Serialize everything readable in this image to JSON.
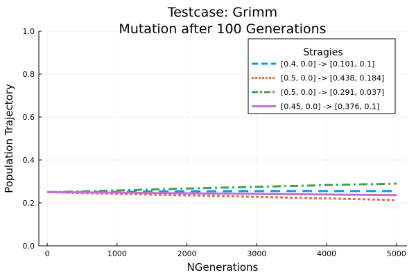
{
  "chart_data": {
    "type": "line",
    "title": "Testcase: Grimm",
    "subtitle": "Mutation after 100 Generations",
    "xlabel": "NGenerations",
    "ylabel": "Population Trajectory",
    "xlim": [
      0,
      5000
    ],
    "ylim": [
      0.0,
      1.0
    ],
    "xticks": [
      0,
      1000,
      2000,
      3000,
      4000,
      5000
    ],
    "xtick_labels": [
      "0",
      "1000",
      "2000",
      "3000",
      "4000",
      "5000"
    ],
    "yticks": [
      0.0,
      0.2,
      0.4,
      0.6,
      0.8,
      1.0
    ],
    "ytick_labels": [
      "0.0",
      "0.2",
      "0.4",
      "0.6",
      "0.8",
      "1.0"
    ],
    "grid": true,
    "legend": {
      "title": "Stragies",
      "placement": "top-right"
    },
    "series": [
      {
        "name": "[0.4, 0.0] -> [0.101, 0.1]",
        "color": "#009AFA",
        "dash": "dash",
        "x": [
          0,
          1000,
          2000,
          3000,
          4000,
          5000
        ],
        "y": [
          0.25,
          0.252,
          0.254,
          0.255,
          0.255,
          0.255
        ]
      },
      {
        "name": "[0.5, 0.0] -> [0.438, 0.184]",
        "color": "#E36F47",
        "dash": "dot",
        "x": [
          0,
          1000,
          2000,
          3000,
          4000,
          5000
        ],
        "y": [
          0.25,
          0.242,
          0.235,
          0.228,
          0.221,
          0.213
        ]
      },
      {
        "name": "[0.5, 0.0] -> [0.291, 0.037]",
        "color": "#3EA44E",
        "dash": "dashdot",
        "x": [
          0,
          1000,
          2000,
          3000,
          4000,
          5000
        ],
        "y": [
          0.25,
          0.258,
          0.267,
          0.275,
          0.283,
          0.29
        ]
      },
      {
        "name": "[0.45, 0.0] -> [0.376, 0.1]",
        "color": "#C271D2",
        "dash": "solid",
        "x": [
          0,
          1000,
          2000,
          3000,
          4000,
          5000
        ],
        "y": [
          0.25,
          0.248,
          0.245,
          0.242,
          0.239,
          0.236
        ]
      }
    ]
  }
}
